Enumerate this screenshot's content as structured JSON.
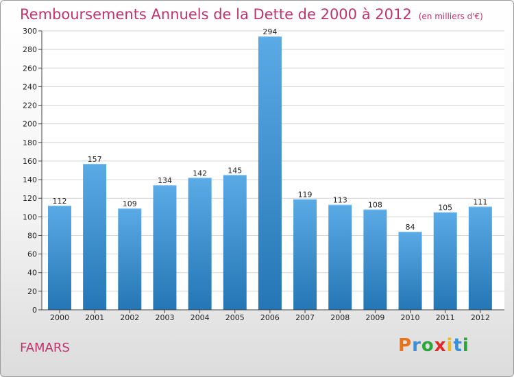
{
  "header": {
    "title": "Remboursements Annuels de la Dette de 2000 à 2012",
    "unit": "(en milliers d'€)"
  },
  "footer": {
    "place": "FAMARS",
    "logo": [
      "P",
      "r",
      "o",
      "x",
      "i",
      "t",
      "i"
    ]
  },
  "colors": {
    "accent": "#c0336c",
    "bar_light": "#5aaae6",
    "bar_dark": "#2476b4",
    "logo": [
      "#e8731c",
      "#3a8fd6",
      "#2aa63c",
      "#e02a2a",
      "#f0b81e",
      "#3a8fd6",
      "#2aa63c"
    ]
  },
  "chart_data": {
    "type": "bar",
    "title": "Remboursements Annuels de la Dette de 2000 à 2012",
    "categories": [
      "2000",
      "2001",
      "2002",
      "2003",
      "2004",
      "2005",
      "2006",
      "2007",
      "2008",
      "2009",
      "2010",
      "2011",
      "2012"
    ],
    "values": [
      112,
      157,
      109,
      134,
      142,
      145,
      294,
      119,
      113,
      108,
      84,
      105,
      111
    ],
    "ylim": [
      0,
      300
    ],
    "yticks": [
      0,
      20,
      40,
      60,
      80,
      100,
      120,
      140,
      160,
      180,
      200,
      220,
      240,
      260,
      280,
      300
    ],
    "grid": true,
    "legend": "none"
  }
}
